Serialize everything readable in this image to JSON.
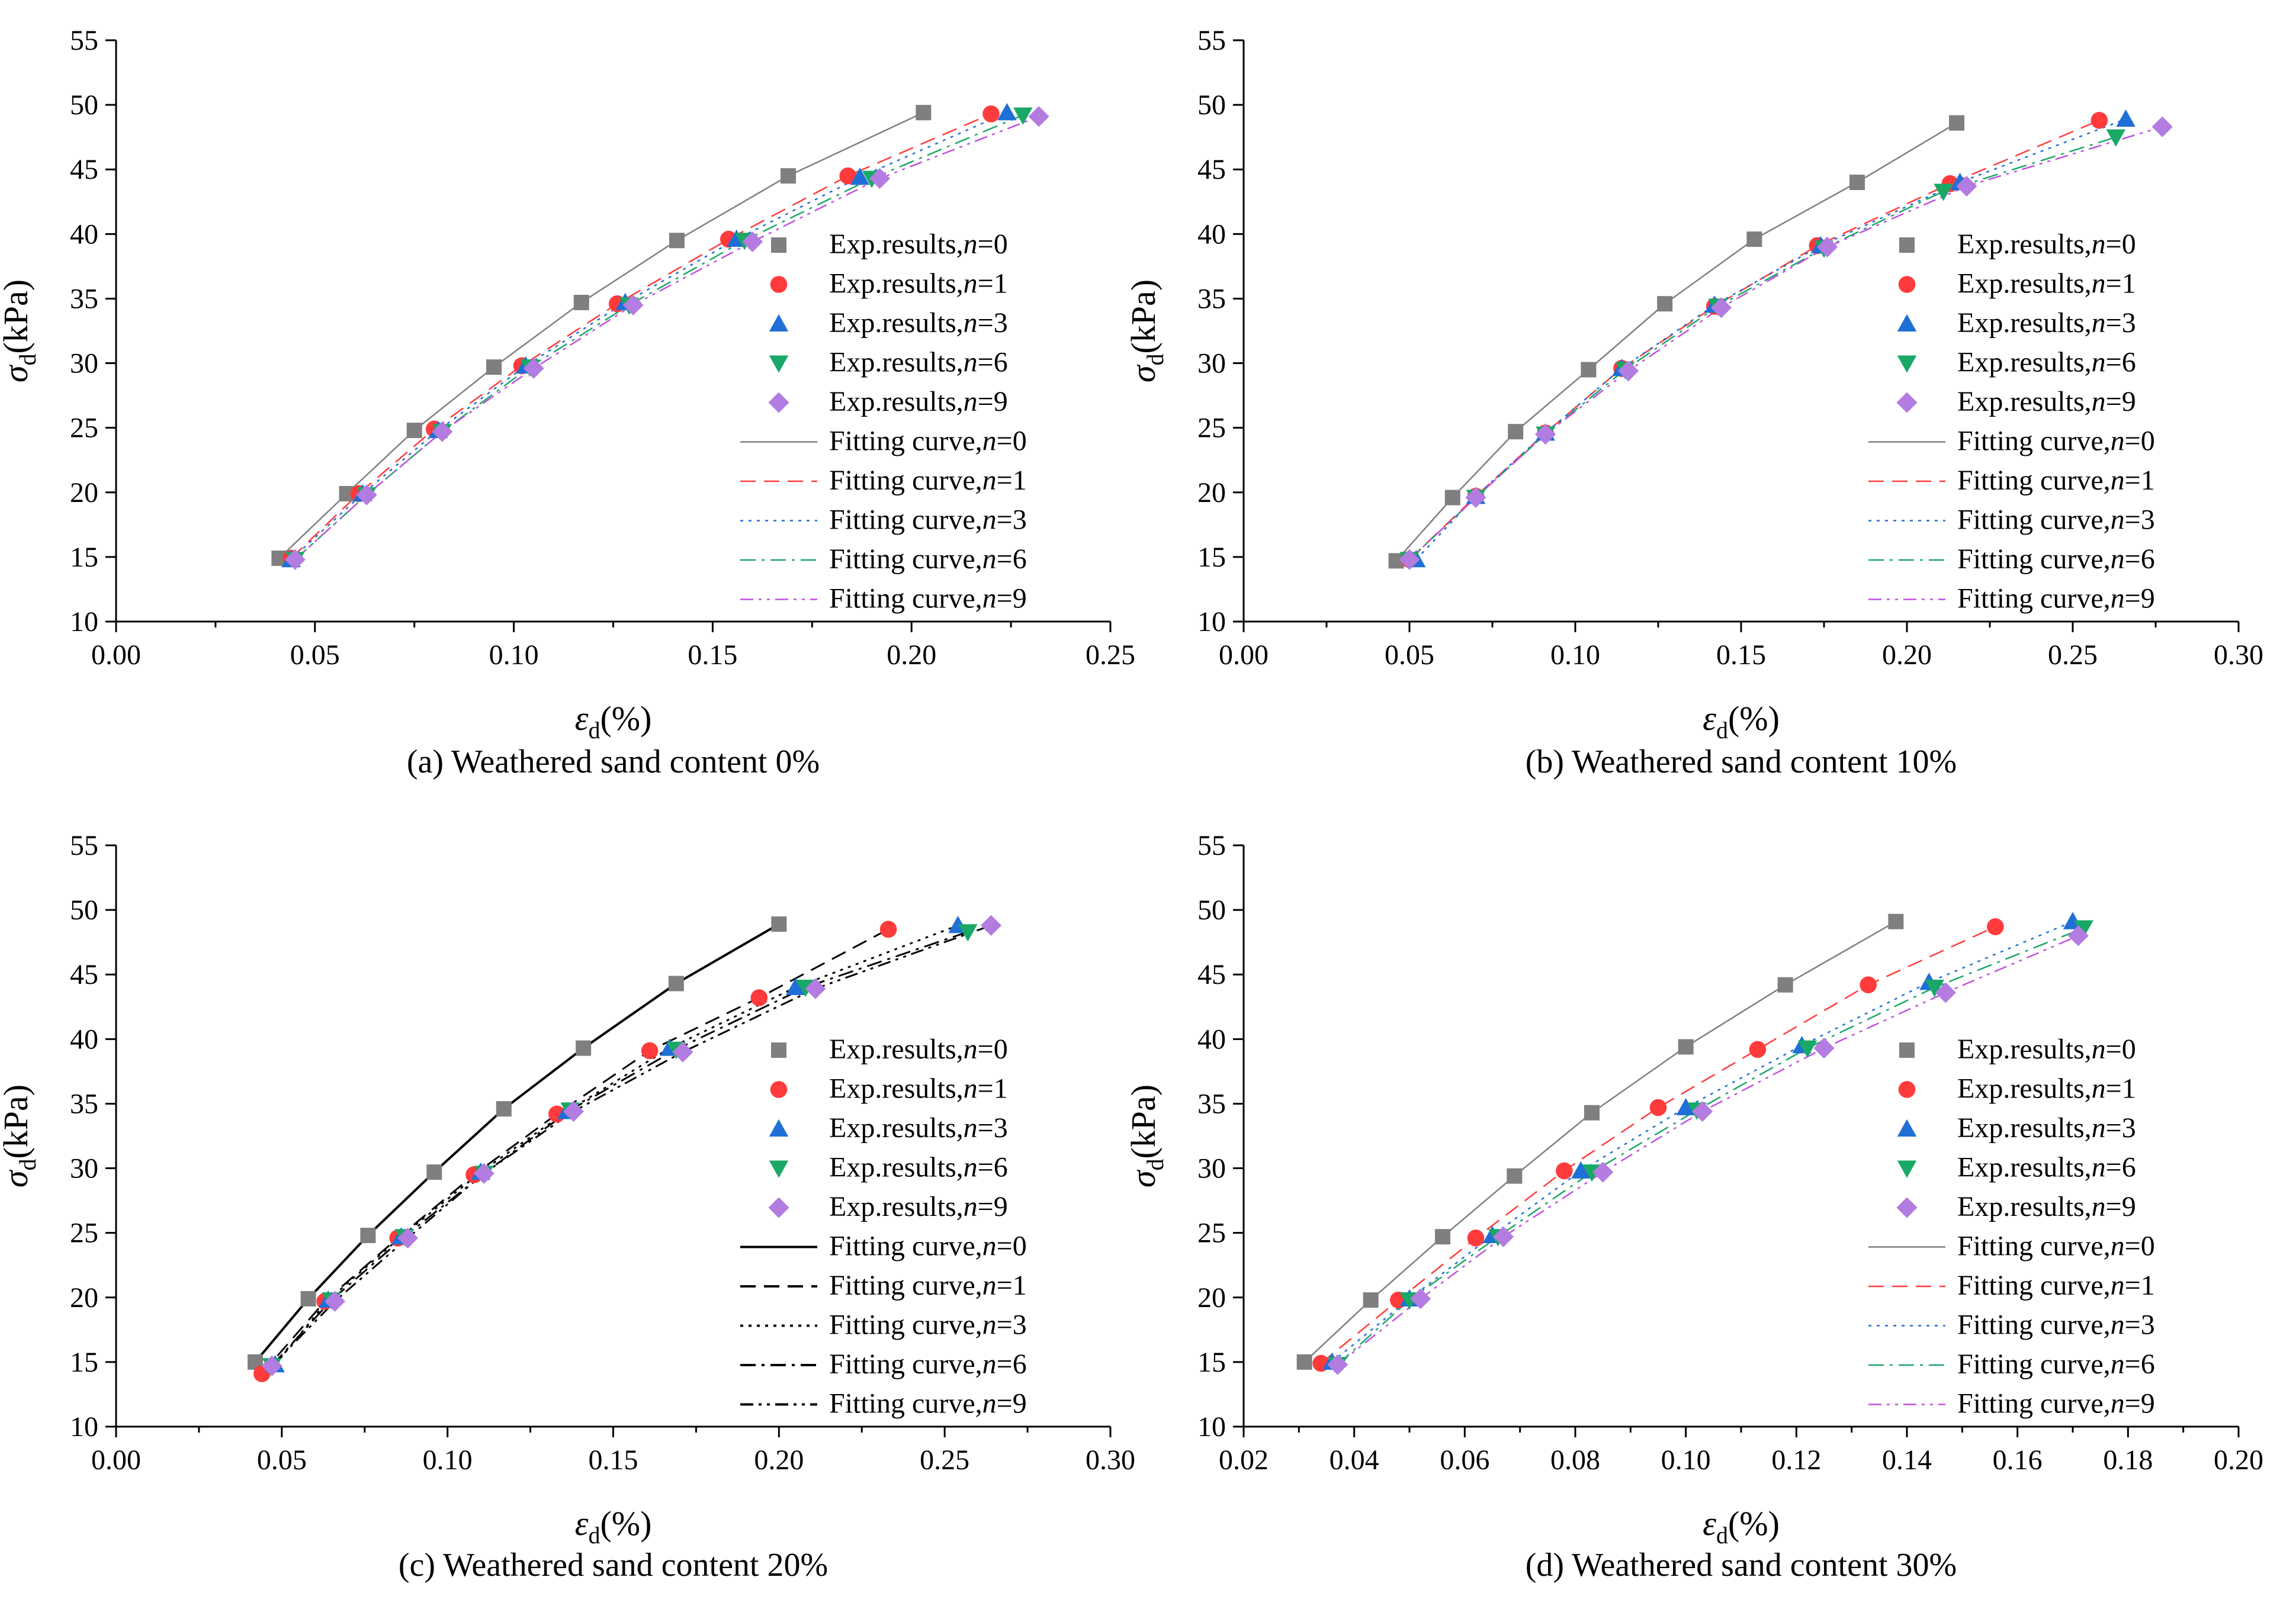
{
  "chart_data": [
    {
      "type": "scatter",
      "caption": "(a) Weathered sand content 0%",
      "xlabel_sym": "ε",
      "xlabel_sub": "d",
      "xlabel_unit": "(%)",
      "ylabel_sym": "σ",
      "ylabel_sub": "d",
      "ylabel_unit": "(kPa)",
      "xlim": [
        0.0,
        0.25
      ],
      "ylim": [
        10,
        55
      ],
      "xticks": [
        "0.00",
        "0.05",
        "0.10",
        "0.15",
        "0.20",
        "0.25"
      ],
      "yticks": [
        "10",
        "15",
        "20",
        "25",
        "30",
        "35",
        "40",
        "45",
        "50",
        "55"
      ],
      "style": "color",
      "series": [
        {
          "n": "0",
          "x": [
            0.041,
            0.058,
            0.075,
            0.095,
            0.117,
            0.141,
            0.169,
            0.203
          ],
          "y": [
            14.9,
            19.9,
            24.8,
            29.7,
            34.7,
            39.5,
            44.5,
            49.4
          ]
        },
        {
          "n": "1",
          "x": [
            0.044,
            0.061,
            0.08,
            0.102,
            0.126,
            0.154,
            0.184,
            0.22
          ],
          "y": [
            14.9,
            19.9,
            24.9,
            29.8,
            34.6,
            39.6,
            44.5,
            49.3
          ]
        },
        {
          "n": "3",
          "x": [
            0.044,
            0.062,
            0.081,
            0.103,
            0.128,
            0.156,
            0.187,
            0.224
          ],
          "y": [
            14.8,
            19.9,
            24.8,
            29.8,
            34.7,
            39.6,
            44.4,
            49.4
          ]
        },
        {
          "n": "6",
          "x": [
            0.045,
            0.063,
            0.082,
            0.104,
            0.129,
            0.158,
            0.19,
            0.228
          ],
          "y": [
            14.8,
            19.8,
            24.7,
            29.7,
            34.5,
            39.5,
            44.3,
            49.2
          ]
        },
        {
          "n": "9",
          "x": [
            0.045,
            0.063,
            0.082,
            0.105,
            0.13,
            0.16,
            0.192,
            0.232
          ],
          "y": [
            14.8,
            19.8,
            24.7,
            29.6,
            34.5,
            39.4,
            44.3,
            49.1
          ]
        }
      ]
    },
    {
      "type": "scatter",
      "caption": "(b) Weathered sand content 10%",
      "xlabel_sym": "ε",
      "xlabel_sub": "d",
      "xlabel_unit": "(%)",
      "ylabel_sym": "σ",
      "ylabel_sub": "d",
      "ylabel_unit": "(kPa)",
      "xlim": [
        0.0,
        0.3
      ],
      "ylim": [
        10,
        55
      ],
      "xticks": [
        "0.00",
        "0.05",
        "0.10",
        "0.15",
        "0.20",
        "0.25",
        "0.30"
      ],
      "yticks": [
        "10",
        "15",
        "20",
        "25",
        "30",
        "35",
        "40",
        "45",
        "50",
        "55"
      ],
      "style": "color",
      "series": [
        {
          "n": "0",
          "x": [
            0.046,
            0.063,
            0.082,
            0.104,
            0.127,
            0.154,
            0.185,
            0.215
          ],
          "y": [
            14.7,
            19.6,
            24.7,
            29.5,
            34.6,
            39.6,
            44.0,
            48.6
          ]
        },
        {
          "n": "1",
          "x": [
            0.05,
            0.07,
            0.091,
            0.114,
            0.142,
            0.173,
            0.213,
            0.258
          ],
          "y": [
            14.8,
            19.7,
            24.6,
            29.6,
            34.4,
            39.1,
            43.9,
            48.8
          ]
        },
        {
          "n": "3",
          "x": [
            0.052,
            0.07,
            0.091,
            0.114,
            0.142,
            0.174,
            0.216,
            0.266
          ],
          "y": [
            14.8,
            19.7,
            24.6,
            29.6,
            34.5,
            39.1,
            44.0,
            48.9
          ]
        },
        {
          "n": "6",
          "x": [
            0.05,
            0.07,
            0.091,
            0.115,
            0.143,
            0.175,
            0.211,
            0.263
          ],
          "y": [
            14.8,
            19.6,
            24.5,
            29.5,
            34.4,
            38.9,
            43.3,
            47.5
          ]
        },
        {
          "n": "9",
          "x": [
            0.05,
            0.07,
            0.091,
            0.116,
            0.144,
            0.176,
            0.218,
            0.277
          ],
          "y": [
            14.8,
            19.6,
            24.5,
            29.4,
            34.3,
            39.0,
            43.7,
            48.3
          ]
        }
      ]
    },
    {
      "type": "scatter",
      "caption": "(c) Weathered sand content 20%",
      "xlabel_sym": "ε",
      "xlabel_sub": "d",
      "xlabel_unit": "(%)",
      "ylabel_sym": "σ",
      "ylabel_sub": "d",
      "ylabel_unit": "(kPa)",
      "xlim": [
        0.0,
        0.3
      ],
      "ylim": [
        10,
        55
      ],
      "xticks": [
        "0.00",
        "0.05",
        "0.10",
        "0.15",
        "0.20",
        "0.25",
        "0.30"
      ],
      "yticks": [
        "10",
        "15",
        "20",
        "25",
        "30",
        "35",
        "40",
        "45",
        "50",
        "55"
      ],
      "style": "mono",
      "series": [
        {
          "n": "0",
          "x": [
            0.042,
            0.058,
            0.076,
            0.096,
            0.117,
            0.141,
            0.169,
            0.2
          ],
          "y": [
            15.0,
            19.9,
            24.8,
            29.7,
            34.6,
            39.3,
            44.3,
            48.9
          ]
        },
        {
          "n": "1",
          "x": [
            0.044,
            0.063,
            0.085,
            0.108,
            0.133,
            0.161,
            0.194,
            0.233
          ],
          "y": [
            14.1,
            19.7,
            24.6,
            29.5,
            34.2,
            39.1,
            43.2,
            48.5
          ]
        },
        {
          "n": "3",
          "x": [
            0.048,
            0.064,
            0.086,
            0.11,
            0.136,
            0.167,
            0.205,
            0.254
          ],
          "y": [
            14.8,
            19.8,
            24.7,
            29.7,
            34.4,
            39.3,
            44.0,
            48.8
          ]
        },
        {
          "n": "6",
          "x": [
            0.047,
            0.065,
            0.087,
            0.111,
            0.137,
            0.169,
            0.208,
            0.257
          ],
          "y": [
            14.7,
            19.8,
            24.7,
            29.6,
            34.5,
            39.2,
            44.0,
            48.3
          ]
        },
        {
          "n": "9",
          "x": [
            0.047,
            0.066,
            0.088,
            0.111,
            0.138,
            0.171,
            0.211,
            0.264
          ],
          "y": [
            14.7,
            19.7,
            24.6,
            29.6,
            34.4,
            39.0,
            43.9,
            48.8
          ]
        }
      ]
    },
    {
      "type": "scatter",
      "caption": "(d) Weathered sand content 30%",
      "xlabel_sym": "ε",
      "xlabel_sub": "d",
      "xlabel_unit": "(%)",
      "ylabel_sym": "σ",
      "ylabel_sub": "d",
      "ylabel_unit": "(kPa)",
      "xlim": [
        0.02,
        0.2
      ],
      "ylim": [
        10,
        55
      ],
      "xticks": [
        "0.02",
        "0.04",
        "0.06",
        "0.08",
        "0.10",
        "0.12",
        "0.14",
        "0.16",
        "0.18",
        "0.20"
      ],
      "yticks": [
        "10",
        "15",
        "20",
        "25",
        "30",
        "35",
        "40",
        "45",
        "50",
        "55"
      ],
      "style": "color",
      "series": [
        {
          "n": "0",
          "x": [
            0.031,
            0.043,
            0.056,
            0.069,
            0.083,
            0.1,
            0.118,
            0.138
          ],
          "y": [
            15.0,
            19.8,
            24.7,
            29.4,
            34.3,
            39.4,
            44.2,
            49.1
          ]
        },
        {
          "n": "1",
          "x": [
            0.034,
            0.048,
            0.062,
            0.078,
            0.095,
            0.113,
            0.133,
            0.156
          ],
          "y": [
            14.9,
            19.8,
            24.6,
            29.8,
            34.7,
            39.2,
            44.2,
            48.7
          ]
        },
        {
          "n": "3",
          "x": [
            0.036,
            0.05,
            0.065,
            0.081,
            0.1,
            0.121,
            0.144,
            0.17
          ],
          "y": [
            15.0,
            19.9,
            24.8,
            29.8,
            34.7,
            39.5,
            44.4,
            49.1
          ]
        },
        {
          "n": "6",
          "x": [
            0.037,
            0.05,
            0.066,
            0.083,
            0.102,
            0.122,
            0.145,
            0.172
          ],
          "y": [
            14.8,
            19.8,
            24.7,
            29.7,
            34.5,
            39.3,
            44.0,
            48.6
          ]
        },
        {
          "n": "9",
          "x": [
            0.037,
            0.052,
            0.067,
            0.085,
            0.103,
            0.125,
            0.147,
            0.171
          ],
          "y": [
            14.8,
            19.9,
            24.7,
            29.7,
            34.4,
            39.3,
            43.6,
            48.0
          ]
        }
      ]
    }
  ],
  "legend": {
    "exp_prefix": "Exp.results,",
    "fit_prefix": "Fitting curve,",
    "n_symbol": "n",
    "eq": "="
  },
  "palette": {
    "color": {
      "series_colors": [
        "#7f7f7f",
        "#ff3b3b",
        "#1f6fd6",
        "#19a866",
        "#b27ce0"
      ],
      "line_colors": [
        "#7f7f7f",
        "#ff3b3b",
        "#1f6fd6",
        "#19a866",
        "#c04fe0"
      ],
      "marker_colors": [
        "#7f7f7f",
        "#ff3b3b",
        "#1f6fd6",
        "#19a866",
        "#b27ce0"
      ]
    },
    "mono": {
      "marker_colors": [
        "#7f7f7f",
        "#ff3b3b",
        "#1f6fd6",
        "#19a866",
        "#b27ce0"
      ],
      "line_colors": [
        "#000000",
        "#000000",
        "#000000",
        "#000000",
        "#000000"
      ]
    },
    "markers": [
      "square",
      "circle",
      "triangle-up",
      "triangle-down",
      "diamond"
    ],
    "line_styles": [
      "solid",
      "dash",
      "dot",
      "dashdot",
      "dashdotdot"
    ]
  }
}
